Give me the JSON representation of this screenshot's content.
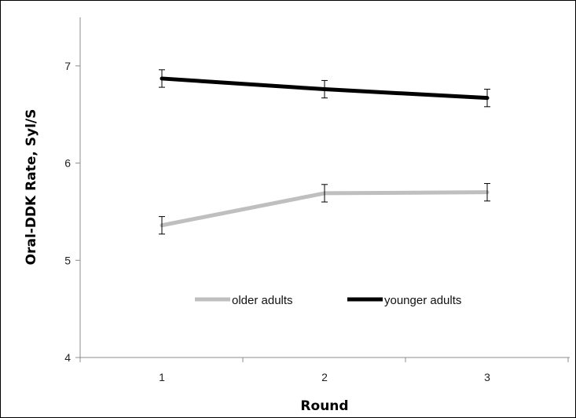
{
  "chart_data": {
    "type": "line",
    "xlabel": "Round",
    "ylabel": "Oral-DDK Rate, Syl/S",
    "x": [
      1,
      2,
      3
    ],
    "x_tick_labels": [
      "1",
      "2",
      "3"
    ],
    "ylim": [
      4,
      7.5
    ],
    "y_ticks": [
      4,
      5,
      6,
      7
    ],
    "y_tick_labels": [
      "4",
      "5",
      "6",
      "7"
    ],
    "grid": false,
    "legend_position": "inside-lower-center",
    "series": [
      {
        "name": "older adults",
        "color": "#bfbfbf",
        "values": [
          5.36,
          5.69,
          5.7
        ],
        "error": [
          0.09,
          0.09,
          0.09
        ]
      },
      {
        "name": "younger adults",
        "color": "#000000",
        "values": [
          6.87,
          6.76,
          6.67
        ],
        "error": [
          0.09,
          0.09,
          0.09
        ]
      }
    ]
  }
}
